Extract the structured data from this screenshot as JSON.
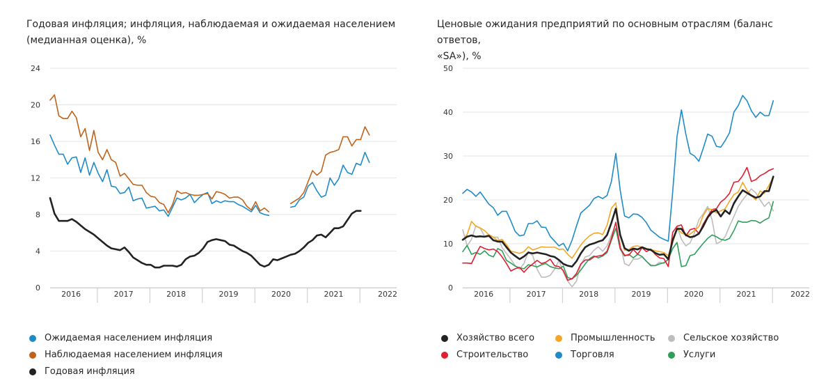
{
  "charts": [
    {
      "title_line1": "Годовая инфляция; инфляция, наблюдаемая и ожидаемая населением",
      "title_line2": "(медианная оценка), %",
      "legend": [
        {
          "label": "Ожидаемая населением инфляция",
          "color": "#1e8bc8"
        },
        {
          "label": "Наблюдаемая населением инфляция",
          "color": "#c0631a"
        },
        {
          "label": "Годовая инфляция",
          "color": "#222222"
        }
      ]
    },
    {
      "title_line1": "Ценовые ожидания предприятий по основным отраслям (баланс ответов,",
      "title_line2": "«SA»), %",
      "legend": [
        {
          "label": "Хозяйство всего",
          "color": "#222222"
        },
        {
          "label": "Промышленность",
          "color": "#f5a623"
        },
        {
          "label": "Сельское хозяйство",
          "color": "#bdbdbd"
        },
        {
          "label": "Строительство",
          "color": "#e01e2e"
        },
        {
          "label": "Торговля",
          "color": "#1e8bc8"
        },
        {
          "label": "Услуги",
          "color": "#2e9e5a"
        }
      ]
    }
  ],
  "chart_data": [
    {
      "type": "line",
      "title": "Годовая инфляция; инфляция, наблюдаемая и ожидаемая населением (медианная оценка), %",
      "x_start": 2015.6,
      "x_step": 0.0833,
      "xlim": [
        2015.6,
        2022.2
      ],
      "ylim": [
        0,
        24
      ],
      "yticks": [
        "0",
        "4",
        "8",
        "12",
        "16",
        "20",
        "24"
      ],
      "year_labels": [
        "2016",
        "2017",
        "2018",
        "2019",
        "2020",
        "2021",
        "2022"
      ],
      "series": [
        {
          "name": "Ожидаемая населением инфляция",
          "color": "#1e8bc8",
          "values": [
            16.7,
            15.6,
            14.6,
            14.6,
            13.5,
            14.2,
            14.3,
            12.6,
            14.2,
            12.3,
            13.7,
            12.5,
            11.6,
            12.9,
            11.1,
            11.0,
            10.3,
            10.4,
            11.0,
            9.5,
            9.7,
            9.8,
            8.7,
            8.8,
            8.9,
            8.4,
            8.5,
            7.8,
            8.8,
            9.8,
            9.6,
            9.8,
            10.2,
            9.3,
            9.8,
            10.2,
            10.4,
            9.2,
            9.5,
            9.3,
            9.5,
            9.4,
            9.4,
            9.1,
            8.9,
            8.6,
            8.3,
            9.0,
            8.2,
            8.0,
            7.9,
            null,
            null,
            null,
            null,
            8.8,
            8.9,
            9.6,
            9.9,
            11.1,
            11.5,
            10.6,
            9.9,
            10.1,
            12.0,
            11.2,
            11.9,
            13.4,
            12.6,
            12.4,
            13.6,
            13.4,
            14.8,
            13.7
          ]
        },
        {
          "name": "Наблюдаемая населением инфляция",
          "color": "#c0631a",
          "values": [
            20.5,
            21.1,
            18.8,
            18.5,
            18.5,
            19.3,
            18.6,
            16.5,
            17.4,
            15.0,
            17.2,
            14.8,
            14.0,
            15.1,
            14.0,
            13.7,
            12.2,
            12.5,
            11.9,
            11.3,
            11.2,
            11.2,
            10.4,
            10.0,
            9.9,
            9.3,
            9.1,
            8.2,
            9.1,
            10.6,
            10.3,
            10.4,
            10.2,
            10.1,
            10.1,
            10.2,
            10.3,
            9.7,
            10.5,
            10.4,
            10.2,
            9.8,
            9.9,
            9.9,
            9.6,
            8.9,
            8.5,
            9.4,
            8.4,
            8.7,
            8.3,
            null,
            null,
            null,
            null,
            9.2,
            9.5,
            9.8,
            10.4,
            11.6,
            12.8,
            12.3,
            12.7,
            14.5,
            14.8,
            14.9,
            15.1,
            16.5,
            16.5,
            15.5,
            16.2,
            16.2,
            17.6,
            16.7
          ]
        },
        {
          "name": "Годовая инфляция",
          "color": "#222222",
          "values": [
            9.8,
            8.1,
            7.3,
            7.3,
            7.3,
            7.5,
            7.2,
            6.8,
            6.4,
            6.1,
            5.8,
            5.4,
            5.0,
            4.6,
            4.3,
            4.2,
            4.1,
            4.4,
            3.9,
            3.3,
            3.0,
            2.7,
            2.5,
            2.5,
            2.2,
            2.2,
            2.4,
            2.4,
            2.4,
            2.3,
            2.5,
            3.1,
            3.4,
            3.5,
            3.8,
            4.3,
            5.0,
            5.2,
            5.3,
            5.2,
            5.1,
            4.7,
            4.6,
            4.3,
            4.0,
            3.8,
            3.5,
            3.0,
            2.5,
            2.3,
            2.5,
            3.1,
            3.0,
            3.2,
            3.4,
            3.6,
            3.7,
            4.0,
            4.4,
            4.9,
            5.2,
            5.7,
            5.8,
            5.5,
            6.0,
            6.5,
            6.5,
            6.7,
            7.4,
            8.1,
            8.4,
            8.4
          ]
        }
      ]
    },
    {
      "type": "line",
      "title": "Ценовые ожидания предприятий по основным отраслям (баланс ответов, «SA»), %",
      "x_start": 2015.6,
      "x_step": 0.0833,
      "xlim": [
        2015.6,
        2022.2
      ],
      "ylim": [
        0,
        50
      ],
      "yticks": [
        "0",
        "10",
        "20",
        "30",
        "40",
        "50"
      ],
      "year_labels": [
        "2016",
        "2017",
        "2018",
        "2019",
        "2020",
        "2021",
        "2022"
      ],
      "series": [
        {
          "name": "Торговля",
          "color": "#1e8bc8",
          "values": [
            21.5,
            22.4,
            21.8,
            20.8,
            21.8,
            20.4,
            19.0,
            18.2,
            16.5,
            17.4,
            17.4,
            15.2,
            12.8,
            11.8,
            12.0,
            14.6,
            14.6,
            15.2,
            13.8,
            13.7,
            11.7,
            10.6,
            9.5,
            10.1,
            8.4,
            10.8,
            14.0,
            17.0,
            17.9,
            18.8,
            20.3,
            20.8,
            20.3,
            21.0,
            24.2,
            30.6,
            22.2,
            16.3,
            15.9,
            16.8,
            16.7,
            16.0,
            14.8,
            13.1,
            12.3,
            11.5,
            11.0,
            10.6,
            21.8,
            34.5,
            40.5,
            35.0,
            30.6,
            30.0,
            28.8,
            31.8,
            35.0,
            34.5,
            32.2,
            32.0,
            33.5,
            35.3,
            40.0,
            41.5,
            43.8,
            42.6,
            40.3,
            38.8,
            40.0,
            39.2,
            39.2,
            42.6
          ]
        },
        {
          "name": "Сельское хозяйство",
          "color": "#bdbdbd",
          "values": [
            13.2,
            9.5,
            11.0,
            14.1,
            13.5,
            11.7,
            12.1,
            11.5,
            11.5,
            9.1,
            7.8,
            6.5,
            5.0,
            4.2,
            5.5,
            8.2,
            7.3,
            4.2,
            2.4,
            2.4,
            2.8,
            4.2,
            6.2,
            3.5,
            1.5,
            0.2,
            1.5,
            5.2,
            7.0,
            7.3,
            8.5,
            9.3,
            8.3,
            9.5,
            12.0,
            14.5,
            10.0,
            5.5,
            5.0,
            6.5,
            6.5,
            7.0,
            6.0,
            5.2,
            5.0,
            5.8,
            5.5,
            6.5,
            10.3,
            14.0,
            11.0,
            9.5,
            10.2,
            12.5,
            15.5,
            16.8,
            18.5,
            15.5,
            10.0,
            10.5,
            11.6,
            14.0,
            16.2,
            18.5,
            20.0,
            21.2,
            22.5,
            21.6,
            20.0,
            18.5,
            19.5,
            17.5
          ]
        },
        {
          "name": "Услуги",
          "color": "#2e9e5a",
          "values": [
            8.2,
            9.6,
            7.6,
            8.0,
            7.6,
            8.4,
            7.4,
            7.0,
            8.9,
            8.4,
            6.2,
            5.6,
            4.9,
            4.5,
            4.3,
            5.2,
            5.0,
            4.7,
            5.2,
            5.5,
            4.8,
            4.5,
            4.3,
            4.9,
            2.3,
            2.0,
            2.8,
            4.0,
            5.4,
            6.6,
            7.2,
            6.8,
            7.2,
            8.0,
            10.8,
            13.5,
            8.8,
            7.2,
            7.6,
            6.8,
            7.6,
            7.1,
            6.0,
            5.0,
            5.0,
            5.4,
            5.7,
            6.4,
            8.9,
            10.3,
            4.8,
            5.0,
            7.3,
            7.6,
            8.9,
            10.1,
            11.2,
            12.0,
            11.6,
            11.0,
            10.8,
            11.2,
            13.0,
            15.2,
            14.9,
            14.9,
            15.3,
            15.2,
            14.7,
            15.4,
            15.9,
            19.6
          ]
        },
        {
          "name": "Строительство",
          "color": "#e01e2e",
          "values": [
            5.6,
            5.6,
            5.5,
            7.6,
            9.4,
            8.9,
            8.6,
            8.8,
            8.2,
            7.0,
            5.5,
            3.8,
            4.3,
            4.6,
            3.5,
            4.6,
            5.4,
            6.2,
            5.5,
            5.8,
            6.5,
            5.0,
            4.8,
            3.9,
            1.7,
            2.0,
            3.2,
            5.4,
            6.3,
            6.3,
            7.0,
            7.2,
            7.4,
            8.3,
            11.2,
            14.9,
            9.0,
            7.4,
            7.4,
            8.7,
            7.6,
            9.1,
            8.2,
            8.8,
            7.6,
            6.8,
            6.6,
            4.8,
            12.6,
            14.0,
            14.3,
            11.8,
            13.2,
            13.5,
            12.3,
            14.5,
            16.2,
            17.8,
            18.0,
            19.5,
            20.3,
            21.5,
            24.0,
            24.2,
            25.5,
            27.4,
            24.2,
            24.6,
            25.5,
            26.0,
            26.7,
            27.1
          ]
        },
        {
          "name": "Промышленность",
          "color": "#f5a623",
          "values": [
            10.9,
            12.1,
            15.1,
            14.0,
            13.6,
            13.0,
            12.0,
            11.5,
            10.7,
            11.0,
            9.8,
            8.3,
            8.1,
            7.8,
            8.2,
            9.3,
            8.6,
            8.9,
            9.3,
            9.2,
            9.2,
            9.2,
            8.7,
            8.8,
            7.6,
            6.7,
            8.2,
            9.7,
            10.9,
            11.8,
            12.4,
            12.5,
            12.1,
            14.2,
            18.1,
            19.3,
            12.0,
            8.5,
            8.7,
            9.4,
            9.5,
            9.2,
            8.9,
            8.7,
            8.4,
            8.2,
            8.0,
            7.3,
            10.2,
            13.5,
            12.5,
            12.0,
            12.2,
            13.0,
            13.9,
            16.5,
            18.0,
            17.8,
            17.0,
            17.5,
            18.0,
            19.7,
            21.2,
            21.8,
            24.0,
            22.2,
            21.0,
            20.0,
            22.0,
            21.5,
            23.3,
            25.2
          ]
        },
        {
          "name": "Хозяйство всего",
          "color": "#222222",
          "values": [
            10.9,
            11.6,
            11.9,
            11.6,
            11.7,
            11.6,
            11.8,
            10.8,
            10.5,
            10.5,
            9.2,
            8.0,
            7.2,
            6.5,
            7.1,
            8.0,
            7.8,
            8.0,
            7.8,
            7.6,
            7.2,
            7.0,
            6.3,
            5.4,
            5.0,
            4.8,
            6.0,
            7.8,
            9.2,
            9.8,
            10.1,
            10.5,
            10.8,
            12.0,
            14.8,
            18.0,
            12.0,
            9.0,
            8.4,
            8.9,
            8.7,
            9.2,
            8.8,
            8.6,
            7.9,
            7.5,
            7.6,
            6.5,
            10.8,
            13.4,
            13.4,
            12.0,
            11.5,
            11.7,
            12.3,
            14.0,
            16.0,
            17.2,
            17.7,
            16.2,
            17.6,
            16.8,
            19.2,
            20.8,
            22.2,
            21.6,
            21.0,
            20.5,
            20.8,
            22.0,
            22.0,
            25.3
          ]
        }
      ]
    }
  ]
}
